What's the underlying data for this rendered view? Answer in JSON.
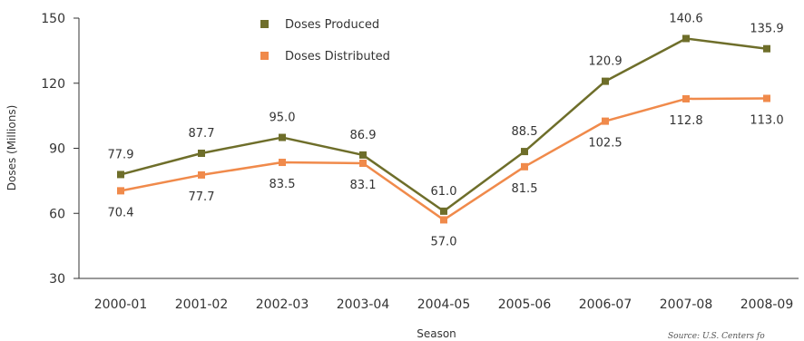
{
  "chart_data": {
    "type": "line",
    "title": "",
    "xlabel": "Season",
    "ylabel": "Doses (Millions)",
    "categories": [
      "2000-01",
      "2001-02",
      "2002-03",
      "2003-04",
      "2004-05",
      "2005-06",
      "2006-07",
      "2007-08",
      "2008-09"
    ],
    "ylim": [
      30,
      150
    ],
    "yticks": [
      30,
      60,
      90,
      120,
      150
    ],
    "grid": false,
    "legend_position": "top-left",
    "series": [
      {
        "name": "Doses Produced",
        "color": "#6e6e2a",
        "values": [
          77.9,
          87.7,
          95.0,
          86.9,
          61.0,
          88.5,
          120.9,
          140.6,
          135.9
        ],
        "labels": [
          "77.9",
          "87.7",
          "95.0",
          "86.9",
          "61.0",
          "88.5",
          "120.9",
          "140.6",
          "135.9"
        ]
      },
      {
        "name": "Doses Distributed",
        "color": "#f08a4b",
        "values": [
          70.4,
          77.7,
          83.5,
          83.1,
          57.0,
          81.5,
          102.5,
          112.8,
          113.0
        ],
        "labels": [
          "70.4",
          "77.7",
          "83.5",
          "83.1",
          "57.0",
          "81.5",
          "102.5",
          "112.8",
          "113.0"
        ]
      }
    ],
    "source": "Source: U.S. Centers fo"
  }
}
